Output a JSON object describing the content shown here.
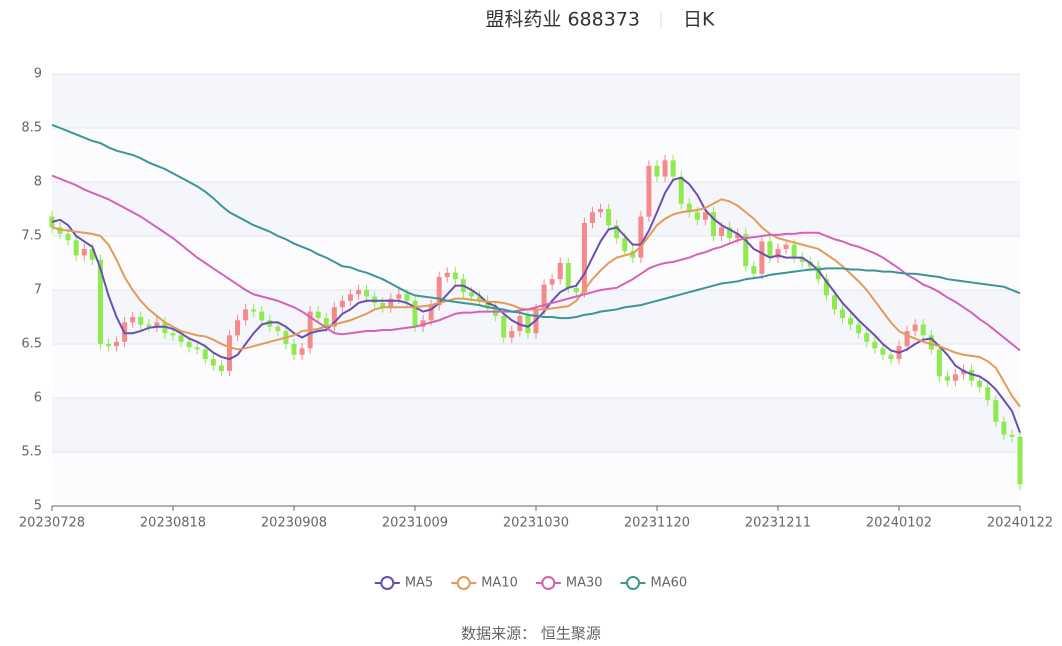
{
  "chart_data": {
    "type": "candlestick",
    "title": "盟科药业 688373",
    "subtitle": "日K",
    "source": "数据来源： 恒生聚源",
    "ylim": [
      5,
      9
    ],
    "yticks": [
      5,
      5.5,
      6,
      6.5,
      7,
      7.5,
      8,
      8.5,
      9
    ],
    "grid": true,
    "up_color": "#f58a8a",
    "down_color": "#8eea4e",
    "categories": [
      "20230728",
      null,
      null,
      null,
      null,
      null,
      null,
      null,
      null,
      null,
      null,
      null,
      null,
      null,
      null,
      "20230818",
      null,
      null,
      null,
      null,
      null,
      null,
      null,
      null,
      null,
      null,
      null,
      null,
      null,
      null,
      "20230908",
      null,
      null,
      null,
      null,
      null,
      null,
      null,
      null,
      null,
      null,
      null,
      null,
      null,
      null,
      "20231009",
      null,
      null,
      null,
      null,
      null,
      null,
      null,
      null,
      null,
      null,
      null,
      null,
      null,
      null,
      "20231030",
      null,
      null,
      null,
      null,
      null,
      null,
      null,
      null,
      null,
      null,
      null,
      null,
      null,
      null,
      "20231120",
      null,
      null,
      null,
      null,
      null,
      null,
      null,
      null,
      null,
      null,
      null,
      null,
      null,
      null,
      "20231211",
      null,
      null,
      null,
      null,
      null,
      null,
      null,
      null,
      null,
      null,
      null,
      null,
      null,
      null,
      "20240102",
      null,
      null,
      null,
      null,
      null,
      null,
      null,
      null,
      null,
      null,
      null,
      null,
      null,
      null,
      "20240122"
    ],
    "open": [
      7.68,
      7.58,
      7.52,
      7.46,
      7.32,
      7.38,
      7.28,
      6.5,
      6.48,
      6.52,
      6.7,
      6.75,
      6.68,
      6.66,
      6.7,
      6.6,
      6.58,
      6.52,
      6.47,
      6.45,
      6.36,
      6.3,
      6.25,
      6.58,
      6.72,
      6.82,
      6.8,
      6.72,
      6.66,
      6.62,
      6.5,
      6.4,
      6.46,
      6.8,
      6.74,
      6.66,
      6.84,
      6.9,
      6.96,
      7.0,
      6.94,
      6.88,
      6.84,
      6.92,
      6.96,
      6.9,
      6.66,
      6.72,
      6.86,
      7.12,
      7.16,
      7.1,
      6.98,
      6.94,
      6.9,
      6.84,
      6.76,
      6.56,
      6.62,
      6.76,
      6.6,
      6.82,
      7.05,
      7.1,
      7.25,
      7.02,
      6.98,
      7.62,
      7.72,
      7.75,
      7.6,
      7.48,
      7.36,
      7.3,
      7.68,
      8.15,
      8.05,
      8.2,
      8.05,
      7.8,
      7.72,
      7.65,
      7.72,
      7.5,
      7.58,
      7.48,
      7.52,
      7.22,
      7.15,
      7.45,
      7.3,
      7.38,
      7.42,
      7.3,
      7.26,
      7.22,
      7.1,
      6.95,
      6.82,
      6.74,
      6.68,
      6.6,
      6.52,
      6.46,
      6.4,
      6.36,
      6.48,
      6.62,
      6.68,
      6.58,
      6.45,
      6.2,
      6.16,
      6.22,
      6.26,
      6.16,
      6.1,
      5.98,
      5.78,
      5.66,
      5.64
    ],
    "close": [
      7.58,
      7.52,
      7.46,
      7.32,
      7.38,
      7.28,
      6.5,
      6.48,
      6.52,
      6.7,
      6.75,
      6.68,
      6.66,
      6.7,
      6.6,
      6.58,
      6.52,
      6.47,
      6.45,
      6.36,
      6.3,
      6.25,
      6.58,
      6.72,
      6.82,
      6.8,
      6.72,
      6.66,
      6.62,
      6.5,
      6.4,
      6.46,
      6.8,
      6.74,
      6.66,
      6.84,
      6.9,
      6.96,
      7.0,
      6.94,
      6.88,
      6.84,
      6.92,
      6.96,
      6.9,
      6.66,
      6.72,
      6.86,
      7.12,
      7.16,
      7.1,
      6.98,
      6.94,
      6.9,
      6.84,
      6.76,
      6.56,
      6.62,
      6.76,
      6.6,
      6.82,
      7.05,
      7.1,
      7.25,
      7.02,
      6.98,
      7.62,
      7.72,
      7.75,
      7.6,
      7.48,
      7.36,
      7.3,
      7.68,
      8.15,
      8.05,
      8.2,
      8.05,
      7.8,
      7.72,
      7.65,
      7.72,
      7.5,
      7.58,
      7.48,
      7.52,
      7.22,
      7.15,
      7.45,
      7.3,
      7.38,
      7.42,
      7.3,
      7.26,
      7.22,
      7.1,
      6.95,
      6.82,
      6.74,
      6.68,
      6.6,
      6.52,
      6.46,
      6.4,
      6.36,
      6.48,
      6.62,
      6.68,
      6.58,
      6.45,
      6.2,
      6.16,
      6.22,
      6.26,
      6.16,
      6.1,
      5.98,
      5.78,
      5.66,
      5.64,
      5.2
    ],
    "high": [
      7.73,
      7.63,
      7.57,
      7.51,
      7.43,
      7.43,
      7.33,
      6.55,
      6.57,
      6.75,
      6.8,
      6.8,
      6.73,
      6.75,
      6.75,
      6.65,
      6.63,
      6.57,
      6.52,
      6.5,
      6.41,
      6.35,
      6.63,
      6.77,
      6.87,
      6.87,
      6.85,
      6.77,
      6.71,
      6.67,
      6.55,
      6.51,
      6.85,
      6.85,
      6.79,
      6.89,
      6.95,
      7.01,
      7.05,
      7.05,
      6.99,
      6.93,
      6.97,
      7.01,
      7.01,
      6.95,
      6.77,
      6.91,
      7.17,
      7.21,
      7.21,
      7.15,
      7.03,
      6.99,
      6.95,
      6.89,
      6.81,
      6.67,
      6.81,
      6.81,
      6.87,
      7.1,
      7.15,
      7.3,
      7.3,
      7.07,
      7.67,
      7.77,
      7.8,
      7.8,
      7.65,
      7.53,
      7.41,
      7.73,
      8.2,
      8.2,
      8.25,
      8.25,
      8.1,
      7.85,
      7.77,
      7.77,
      7.77,
      7.63,
      7.63,
      7.57,
      7.57,
      7.27,
      7.5,
      7.5,
      7.43,
      7.47,
      7.47,
      7.35,
      7.31,
      7.27,
      7.15,
      7.0,
      6.87,
      6.79,
      6.73,
      6.65,
      6.57,
      6.51,
      6.45,
      6.53,
      6.67,
      6.73,
      6.73,
      6.63,
      6.5,
      6.25,
      6.27,
      6.31,
      6.31,
      6.21,
      6.15,
      6.03,
      5.83,
      5.71,
      5.69
    ],
    "low": [
      7.53,
      7.47,
      7.41,
      7.27,
      7.27,
      7.23,
      6.45,
      6.43,
      6.43,
      6.47,
      6.65,
      6.63,
      6.61,
      6.61,
      6.55,
      6.53,
      6.47,
      6.42,
      6.4,
      6.31,
      6.25,
      6.2,
      6.2,
      6.53,
      6.67,
      6.75,
      6.67,
      6.61,
      6.57,
      6.45,
      6.35,
      6.35,
      6.41,
      6.69,
      6.61,
      6.61,
      6.79,
      6.85,
      6.91,
      6.89,
      6.83,
      6.79,
      6.79,
      6.87,
      6.85,
      6.61,
      6.61,
      6.67,
      6.81,
      7.07,
      7.05,
      6.93,
      6.89,
      6.85,
      6.79,
      6.71,
      6.51,
      6.51,
      6.57,
      6.55,
      6.55,
      6.77,
      7.0,
      7.05,
      6.97,
      6.93,
      6.93,
      7.57,
      7.67,
      7.55,
      7.43,
      7.31,
      7.25,
      7.25,
      7.63,
      8.0,
      8.0,
      8.0,
      7.75,
      7.67,
      7.6,
      7.6,
      7.45,
      7.45,
      7.43,
      7.43,
      7.17,
      7.1,
      7.1,
      7.25,
      7.25,
      7.33,
      7.25,
      7.21,
      7.17,
      7.05,
      6.9,
      6.77,
      6.69,
      6.63,
      6.55,
      6.47,
      6.41,
      6.35,
      6.31,
      6.31,
      6.43,
      6.57,
      6.53,
      6.4,
      6.15,
      6.11,
      6.11,
      6.17,
      6.11,
      6.05,
      5.93,
      5.73,
      5.61,
      5.59,
      5.15
    ],
    "series": [
      {
        "name": "MA5",
        "type": "line",
        "color": "#6a4fb0",
        "values": [
          7.63,
          7.65,
          7.6,
          7.5,
          7.45,
          7.4,
          7.2,
          6.95,
          6.75,
          6.6,
          6.6,
          6.62,
          6.65,
          6.66,
          6.66,
          6.64,
          6.6,
          6.55,
          6.52,
          6.48,
          6.42,
          6.38,
          6.36,
          6.4,
          6.5,
          6.6,
          6.68,
          6.7,
          6.7,
          6.66,
          6.6,
          6.56,
          6.6,
          6.62,
          6.63,
          6.7,
          6.78,
          6.82,
          6.88,
          6.9,
          6.9,
          6.9,
          6.9,
          6.9,
          6.88,
          6.84,
          6.8,
          6.82,
          6.88,
          6.96,
          7.04,
          7.04,
          7.0,
          6.95,
          6.88,
          6.85,
          6.78,
          6.72,
          6.68,
          6.66,
          6.72,
          6.8,
          6.9,
          6.98,
          7.02,
          7.04,
          7.15,
          7.3,
          7.45,
          7.56,
          7.58,
          7.5,
          7.42,
          7.42,
          7.55,
          7.72,
          7.9,
          8.02,
          8.04,
          7.98,
          7.88,
          7.74,
          7.66,
          7.6,
          7.56,
          7.52,
          7.46,
          7.38,
          7.34,
          7.3,
          7.32,
          7.3,
          7.3,
          7.3,
          7.25,
          7.18,
          7.08,
          6.98,
          6.88,
          6.8,
          6.72,
          6.65,
          6.58,
          6.5,
          6.44,
          6.42,
          6.45,
          6.5,
          6.54,
          6.55,
          6.48,
          6.4,
          6.3,
          6.25,
          6.22,
          6.2,
          6.15,
          6.08,
          5.98,
          5.88,
          5.68
        ]
      },
      {
        "name": "MA10",
        "type": "line",
        "color": "#e39b55",
        "values": [
          7.58,
          7.56,
          7.55,
          7.54,
          7.53,
          7.52,
          7.5,
          7.42,
          7.28,
          7.12,
          7.0,
          6.9,
          6.82,
          6.76,
          6.7,
          6.66,
          6.62,
          6.6,
          6.58,
          6.57,
          6.54,
          6.5,
          6.47,
          6.45,
          6.46,
          6.48,
          6.5,
          6.52,
          6.54,
          6.56,
          6.58,
          6.62,
          6.63,
          6.64,
          6.66,
          6.68,
          6.7,
          6.72,
          6.75,
          6.78,
          6.82,
          6.84,
          6.84,
          6.84,
          6.84,
          6.84,
          6.85,
          6.86,
          6.88,
          6.9,
          6.92,
          6.92,
          6.91,
          6.9,
          6.89,
          6.89,
          6.88,
          6.86,
          6.83,
          6.82,
          6.82,
          6.82,
          6.83,
          6.84,
          6.85,
          6.9,
          7.0,
          7.1,
          7.18,
          7.25,
          7.3,
          7.32,
          7.34,
          7.4,
          7.5,
          7.6,
          7.66,
          7.7,
          7.72,
          7.73,
          7.74,
          7.76,
          7.8,
          7.84,
          7.82,
          7.78,
          7.72,
          7.66,
          7.58,
          7.52,
          7.48,
          7.46,
          7.44,
          7.42,
          7.4,
          7.38,
          7.33,
          7.28,
          7.22,
          7.15,
          7.08,
          7.0,
          6.9,
          6.8,
          6.7,
          6.62,
          6.58,
          6.55,
          6.52,
          6.5,
          6.48,
          6.45,
          6.42,
          6.4,
          6.39,
          6.38,
          6.34,
          6.28,
          6.15,
          6.02,
          5.92
        ]
      },
      {
        "name": "MA30",
        "type": "line",
        "color": "#d363b5",
        "values": [
          8.06,
          8.03,
          8.0,
          7.97,
          7.93,
          7.9,
          7.87,
          7.84,
          7.8,
          7.76,
          7.72,
          7.68,
          7.63,
          7.58,
          7.53,
          7.48,
          7.42,
          7.36,
          7.3,
          7.25,
          7.2,
          7.15,
          7.1,
          7.05,
          7.0,
          6.96,
          6.94,
          6.92,
          6.9,
          6.87,
          6.84,
          6.8,
          6.75,
          6.7,
          6.65,
          6.6,
          6.59,
          6.6,
          6.61,
          6.62,
          6.62,
          6.63,
          6.63,
          6.64,
          6.65,
          6.66,
          6.68,
          6.7,
          6.72,
          6.75,
          6.78,
          6.79,
          6.79,
          6.8,
          6.8,
          6.8,
          6.8,
          6.8,
          6.81,
          6.82,
          6.84,
          6.86,
          6.88,
          6.9,
          6.92,
          6.94,
          6.96,
          6.98,
          7.0,
          7.01,
          7.02,
          7.06,
          7.1,
          7.15,
          7.2,
          7.23,
          7.25,
          7.26,
          7.28,
          7.3,
          7.33,
          7.35,
          7.38,
          7.4,
          7.43,
          7.46,
          7.48,
          7.49,
          7.5,
          7.51,
          7.51,
          7.52,
          7.52,
          7.53,
          7.53,
          7.53,
          7.5,
          7.47,
          7.45,
          7.42,
          7.4,
          7.37,
          7.34,
          7.3,
          7.25,
          7.2,
          7.14,
          7.1,
          7.05,
          7.02,
          6.98,
          6.93,
          6.89,
          6.84,
          6.79,
          6.73,
          6.68,
          6.62,
          6.56,
          6.5,
          6.44
        ]
      },
      {
        "name": "MA60",
        "type": "line",
        "color": "#3d9597",
        "values": [
          8.53,
          8.5,
          8.47,
          8.44,
          8.41,
          8.38,
          8.36,
          8.32,
          8.29,
          8.27,
          8.25,
          8.22,
          8.18,
          8.15,
          8.12,
          8.08,
          8.04,
          8.0,
          7.96,
          7.91,
          7.85,
          7.78,
          7.72,
          7.68,
          7.64,
          7.6,
          7.57,
          7.54,
          7.5,
          7.47,
          7.43,
          7.4,
          7.37,
          7.33,
          7.3,
          7.26,
          7.22,
          7.21,
          7.18,
          7.16,
          7.13,
          7.1,
          7.06,
          7.02,
          6.98,
          6.95,
          6.94,
          6.93,
          6.92,
          6.9,
          6.89,
          6.88,
          6.87,
          6.86,
          6.84,
          6.83,
          6.82,
          6.8,
          6.79,
          6.77,
          6.76,
          6.75,
          6.75,
          6.74,
          6.74,
          6.75,
          6.77,
          6.78,
          6.8,
          6.81,
          6.82,
          6.84,
          6.85,
          6.86,
          6.88,
          6.9,
          6.92,
          6.94,
          6.96,
          6.98,
          7.0,
          7.02,
          7.04,
          7.06,
          7.07,
          7.08,
          7.1,
          7.11,
          7.12,
          7.14,
          7.15,
          7.16,
          7.17,
          7.18,
          7.19,
          7.19,
          7.2,
          7.2,
          7.2,
          7.19,
          7.19,
          7.18,
          7.18,
          7.17,
          7.17,
          7.16,
          7.15,
          7.15,
          7.14,
          7.13,
          7.12,
          7.1,
          7.09,
          7.08,
          7.07,
          7.06,
          7.05,
          7.04,
          7.03,
          7.0,
          6.97
        ]
      }
    ]
  }
}
